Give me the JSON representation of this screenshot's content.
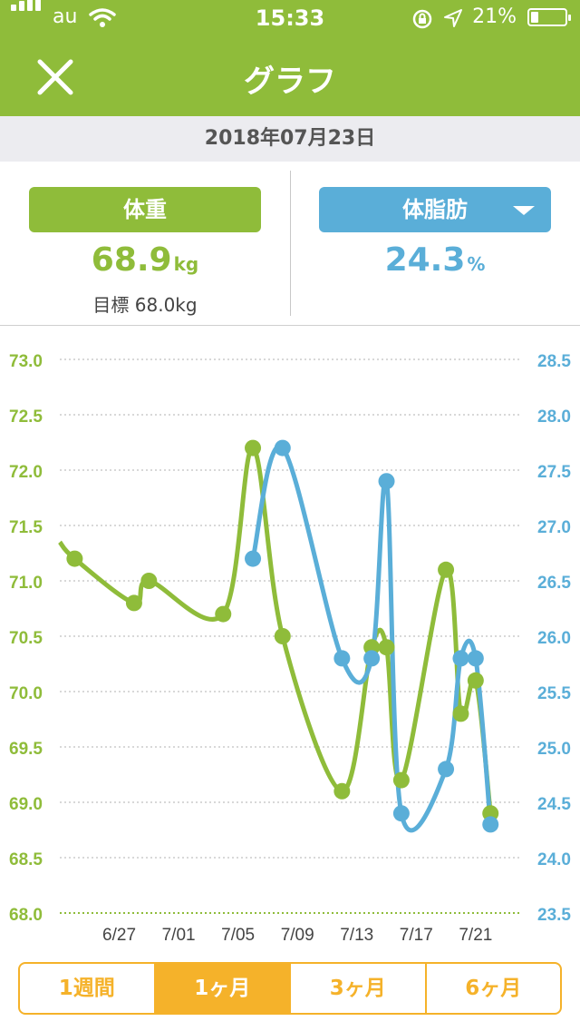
{
  "status": {
    "carrier": "au",
    "time": "15:33",
    "battery_text": "21%",
    "battery_level": 0.21
  },
  "nav": {
    "title": "グラフ"
  },
  "date": "2018年07月23日",
  "metrics": {
    "weight": {
      "label": "体重",
      "value": "68.9",
      "unit": "kg",
      "goal": "目標 68.0kg"
    },
    "fat": {
      "label": "体脂肪",
      "value": "24.3",
      "unit": "%"
    }
  },
  "colors": {
    "green": "#8fbc3a",
    "blue": "#5aaed8",
    "orange": "#f5b22a"
  },
  "chart_data": {
    "type": "line",
    "title": "",
    "categories": [
      "6/27",
      "7/01",
      "7/05",
      "7/09",
      "7/13",
      "7/17",
      "7/21"
    ],
    "left_axis": {
      "ticks": [
        "73.0",
        "72.5",
        "72.0",
        "71.5",
        "71.0",
        "70.5",
        "70.0",
        "69.5",
        "69.0",
        "68.5",
        "68.0"
      ],
      "ylim": [
        68.0,
        73.0
      ]
    },
    "right_axis": {
      "ticks": [
        "28.5",
        "28.0",
        "27.5",
        "27.0",
        "26.5",
        "26.0",
        "25.5",
        "25.0",
        "24.5",
        "24.0",
        "23.5"
      ],
      "ylim": [
        23.5,
        28.5
      ]
    },
    "goal_line": 68.0,
    "xlim": [
      0,
      31
    ],
    "series": [
      {
        "name": "体重",
        "axis": "left",
        "points": [
          {
            "x": 0,
            "y": 71.35,
            "marker": false
          },
          {
            "x": 1,
            "y": 71.2
          },
          {
            "x": 5,
            "y": 70.8
          },
          {
            "x": 6,
            "y": 71.0
          },
          {
            "x": 11,
            "y": 70.7
          },
          {
            "x": 13,
            "y": 72.2
          },
          {
            "x": 15,
            "y": 70.5
          },
          {
            "x": 19,
            "y": 69.1
          },
          {
            "x": 21,
            "y": 70.4
          },
          {
            "x": 22,
            "y": 70.4
          },
          {
            "x": 23,
            "y": 69.2
          },
          {
            "x": 26,
            "y": 71.1
          },
          {
            "x": 27,
            "y": 69.8
          },
          {
            "x": 28,
            "y": 70.1
          },
          {
            "x": 29,
            "y": 68.9
          }
        ]
      },
      {
        "name": "体脂肪",
        "axis": "right",
        "points": [
          {
            "x": 13,
            "y": 26.7
          },
          {
            "x": 15,
            "y": 27.7
          },
          {
            "x": 19,
            "y": 25.8
          },
          {
            "x": 21,
            "y": 25.8
          },
          {
            "x": 22,
            "y": 27.4
          },
          {
            "x": 23,
            "y": 24.4
          },
          {
            "x": 26,
            "y": 24.8
          },
          {
            "x": 27,
            "y": 25.8
          },
          {
            "x": 28,
            "y": 25.8
          },
          {
            "x": 29,
            "y": 24.3
          }
        ]
      }
    ]
  },
  "ranges": [
    {
      "label": "1週間",
      "active": false
    },
    {
      "label": "1ヶ月",
      "active": true
    },
    {
      "label": "3ヶ月",
      "active": false
    },
    {
      "label": "6ヶ月",
      "active": false
    }
  ]
}
